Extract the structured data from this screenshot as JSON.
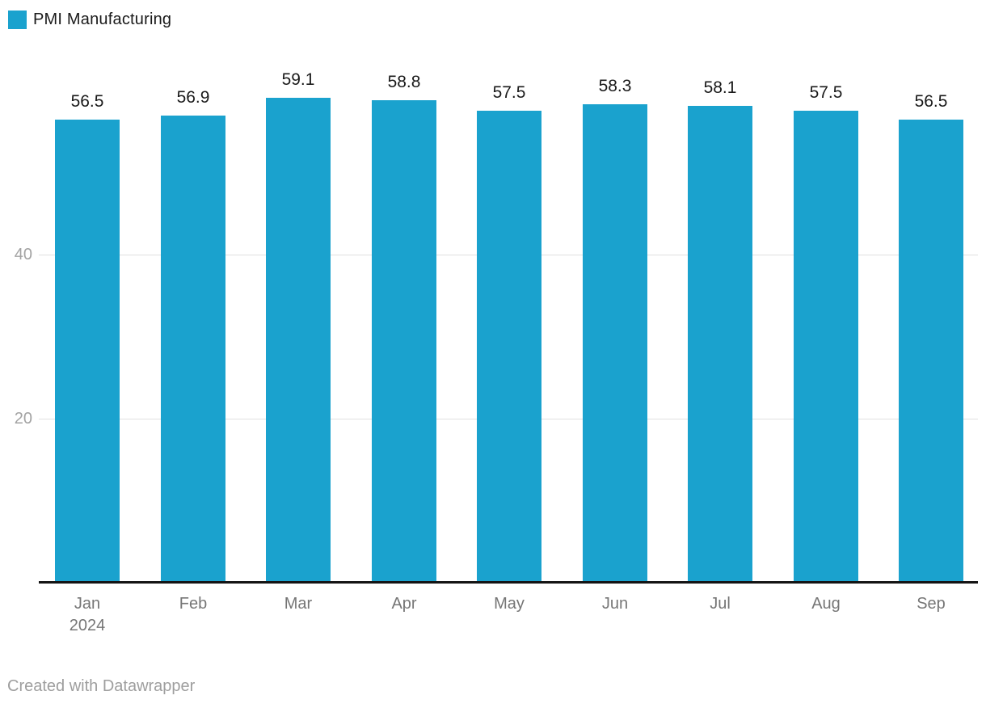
{
  "legend": {
    "label": "PMI Manufacturing",
    "color": "#1AA2CE"
  },
  "footer": {
    "text": "Created with Datawrapper"
  },
  "colors": {
    "bar": "#1AA2CE",
    "gridline": "#e0e0e0",
    "axis_line": "#141414",
    "value_label_text": "#1a1a1a",
    "tick_label_text": "#a3a3a3",
    "month_label_text": "#767676",
    "footer_text": "#9e9e9e"
  },
  "chart_data": {
    "type": "bar",
    "title": "",
    "legend_position": "top-left",
    "series_name": "PMI Manufacturing",
    "categories": [
      "Jan",
      "Feb",
      "Mar",
      "Apr",
      "May",
      "Jun",
      "Jul",
      "Aug",
      "Sep"
    ],
    "category_sublabels": [
      "2024",
      "",
      "",
      "",
      "",
      "",
      "",
      "",
      ""
    ],
    "values": [
      56.5,
      56.9,
      59.1,
      58.8,
      57.5,
      58.3,
      58.1,
      57.5,
      56.5
    ],
    "value_labels": [
      "56.5",
      "56.9",
      "59.1",
      "58.8",
      "57.5",
      "58.3",
      "58.1",
      "57.5",
      "56.5"
    ],
    "yticks": [
      20,
      40
    ],
    "ytick_labels": [
      "20",
      "40"
    ],
    "ylim": [
      0,
      62
    ],
    "grid": true,
    "bar_color": "#1AA2CE"
  }
}
